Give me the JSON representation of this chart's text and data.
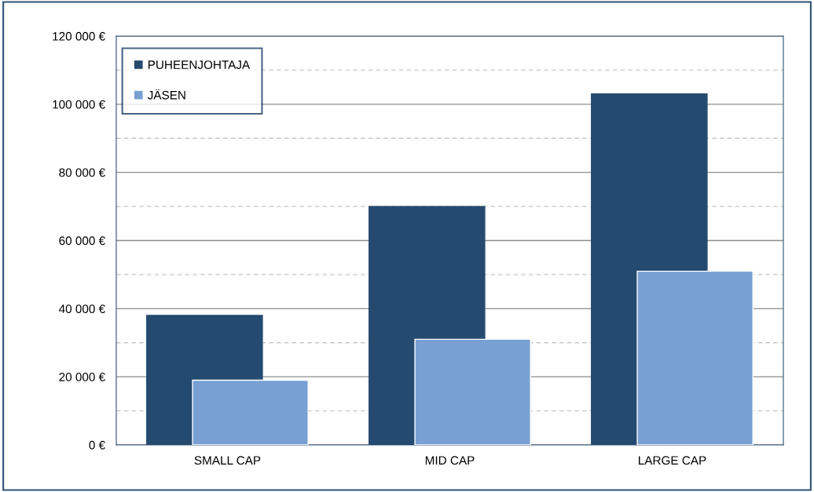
{
  "chart_data": {
    "type": "bar",
    "categories": [
      "SMALL CAP",
      "MID CAP",
      "LARGE CAP"
    ],
    "series": [
      {
        "name": "PUHEENJOHTAJA",
        "color": "#254a6f",
        "values": [
          38000,
          70000,
          103000
        ]
      },
      {
        "name": "JÄSEN",
        "color": "#78a0d2",
        "values": [
          19000,
          31000,
          51000
        ]
      }
    ],
    "ylim": [
      0,
      120000
    ],
    "yticks": [
      {
        "value": 0,
        "label": "0 €"
      },
      {
        "value": 10000,
        "label": null
      },
      {
        "value": 20000,
        "label": "20 000 €"
      },
      {
        "value": 30000,
        "label": null
      },
      {
        "value": 40000,
        "label": "40 000 €"
      },
      {
        "value": 50000,
        "label": null
      },
      {
        "value": 60000,
        "label": "60 000 €"
      },
      {
        "value": 70000,
        "label": null
      },
      {
        "value": 80000,
        "label": "80 000 €"
      },
      {
        "value": 90000,
        "label": null
      },
      {
        "value": 100000,
        "label": "100 000 €"
      },
      {
        "value": 110000,
        "label": null
      },
      {
        "value": 120000,
        "label": "120 000 €"
      }
    ],
    "grid": "y",
    "legend": "top left"
  }
}
